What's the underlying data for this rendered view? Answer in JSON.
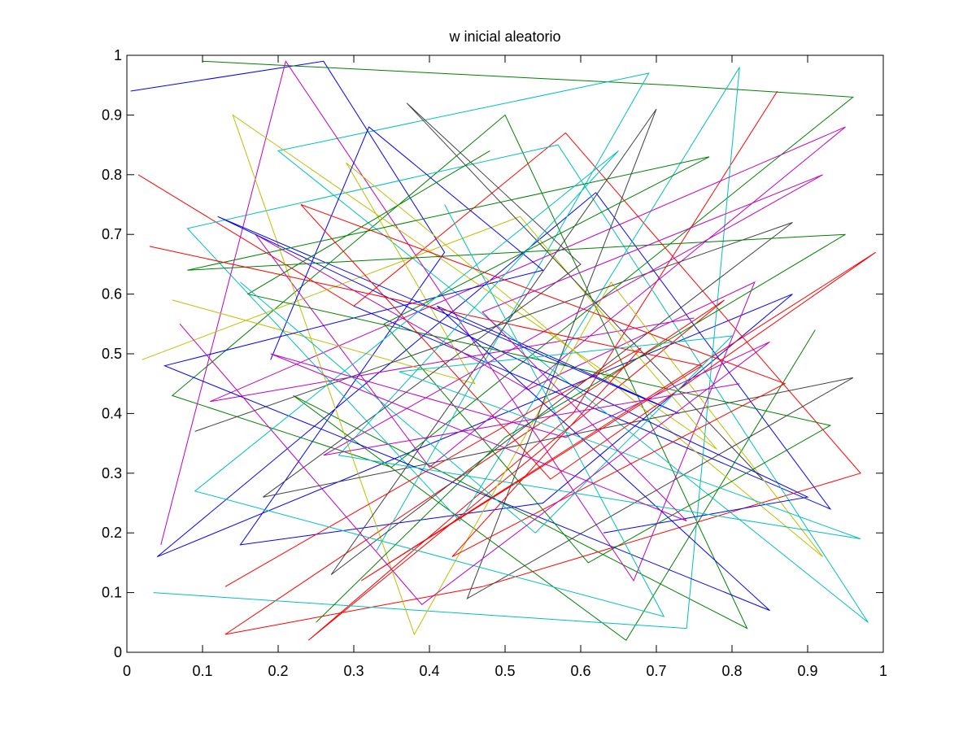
{
  "chart_data": {
    "type": "line",
    "title": "w inicial aleatorio",
    "xlabel": "",
    "ylabel": "",
    "xlim": [
      0,
      1
    ],
    "ylim": [
      0,
      1
    ],
    "xticks": [
      0,
      0.1,
      0.2,
      0.3,
      0.4,
      0.5,
      0.6,
      0.7,
      0.8,
      0.9,
      1
    ],
    "yticks": [
      0,
      0.1,
      0.2,
      0.3,
      0.4,
      0.5,
      0.6,
      0.7,
      0.8,
      0.9,
      1
    ],
    "xtick_labels": [
      "0",
      "0.1",
      "0.2",
      "0.3",
      "0.4",
      "0.5",
      "0.6",
      "0.7",
      "0.8",
      "0.9",
      "1"
    ],
    "ytick_labels": [
      "0",
      "0.1",
      "0.2",
      "0.3",
      "0.4",
      "0.5",
      "0.6",
      "0.7",
      "0.8",
      "0.9",
      "1"
    ],
    "grid": false,
    "legend": "none",
    "color_cycle": [
      "#0000ff",
      "#008000",
      "#ff0000",
      "#00bfbf",
      "#bf00bf",
      "#bfbf00",
      "#404040"
    ],
    "series": [
      {
        "x": [
          0.005,
          0.26,
          0.42,
          0.15,
          0.55,
          0.88,
          0.04,
          0.62,
          0.93,
          0.3
        ],
        "y": [
          0.94,
          0.99,
          0.67,
          0.18,
          0.25,
          0.6,
          0.16,
          0.77,
          0.24,
          0.58
        ]
      },
      {
        "x": [
          0.1,
          0.72,
          0.96,
          0.35,
          0.06,
          0.5,
          0.82,
          0.22,
          0.66,
          0.91
        ],
        "y": [
          0.99,
          0.95,
          0.93,
          0.31,
          0.43,
          0.9,
          0.04,
          0.43,
          0.02,
          0.54
        ]
      },
      {
        "x": [
          0.015,
          0.3,
          0.58,
          0.97,
          0.47,
          0.13,
          0.79,
          0.24,
          0.59,
          0.86
        ],
        "y": [
          0.8,
          0.58,
          0.87,
          0.3,
          0.11,
          0.03,
          0.59,
          0.02,
          0.4,
          0.94
        ]
      },
      {
        "x": [
          0.035,
          0.74,
          0.81,
          0.44,
          0.08,
          0.57,
          0.98,
          0.2,
          0.69,
          0.33
        ],
        "y": [
          0.1,
          0.04,
          0.98,
          0.22,
          0.71,
          0.85,
          0.05,
          0.84,
          0.97,
          0.17
        ]
      },
      {
        "x": [
          0.045,
          0.21,
          0.67,
          0.83,
          0.53,
          0.17,
          0.4,
          0.95,
          0.11,
          0.75
        ],
        "y": [
          0.18,
          0.99,
          0.12,
          0.62,
          0.44,
          0.7,
          0.31,
          0.88,
          0.42,
          0.56
        ]
      },
      {
        "x": [
          0.06,
          0.46,
          0.29,
          0.92,
          0.64,
          0.38,
          0.14,
          0.78,
          0.52,
          0.02
        ],
        "y": [
          0.59,
          0.45,
          0.82,
          0.16,
          0.62,
          0.03,
          0.9,
          0.34,
          0.73,
          0.49
        ]
      },
      {
        "x": [
          0.09,
          0.88,
          0.27,
          0.7,
          0.45,
          0.96,
          0.18,
          0.6,
          0.37,
          0.84
        ],
        "y": [
          0.37,
          0.72,
          0.13,
          0.91,
          0.09,
          0.46,
          0.26,
          0.65,
          0.92,
          0.29
        ]
      },
      {
        "x": [
          0.19,
          0.32,
          0.55,
          0.05,
          0.85,
          0.41,
          0.73,
          0.12,
          0.9,
          0.63
        ],
        "y": [
          0.49,
          0.88,
          0.64,
          0.48,
          0.07,
          0.58,
          0.4,
          0.73,
          0.26,
          0.2
        ]
      },
      {
        "x": [
          0.25,
          0.5,
          0.95,
          0.08,
          0.77,
          0.34,
          0.61,
          0.93,
          0.16,
          0.48
        ],
        "y": [
          0.05,
          0.36,
          0.7,
          0.64,
          0.83,
          0.55,
          0.15,
          0.38,
          0.6,
          0.84
        ]
      },
      {
        "x": [
          0.13,
          0.68,
          0.43,
          0.87,
          0.23,
          0.56,
          0.99,
          0.31,
          0.76,
          0.03
        ],
        "y": [
          0.11,
          0.51,
          0.16,
          0.45,
          0.75,
          0.29,
          0.67,
          0.12,
          0.48,
          0.68
        ]
      },
      {
        "x": [
          0.15,
          0.54,
          0.8,
          0.36,
          0.97,
          0.28,
          0.65,
          0.09,
          0.71,
          0.42
        ],
        "y": [
          0.62,
          0.2,
          0.53,
          0.47,
          0.19,
          0.33,
          0.84,
          0.27,
          0.06,
          0.75
        ]
      },
      {
        "x": [
          0.07,
          0.39,
          0.85,
          0.58,
          0.19,
          0.74,
          0.47,
          0.92,
          0.26,
          0.81
        ],
        "y": [
          0.55,
          0.08,
          0.52,
          0.36,
          0.5,
          0.22,
          0.57,
          0.8,
          0.33,
          0.45
        ]
      }
    ]
  }
}
